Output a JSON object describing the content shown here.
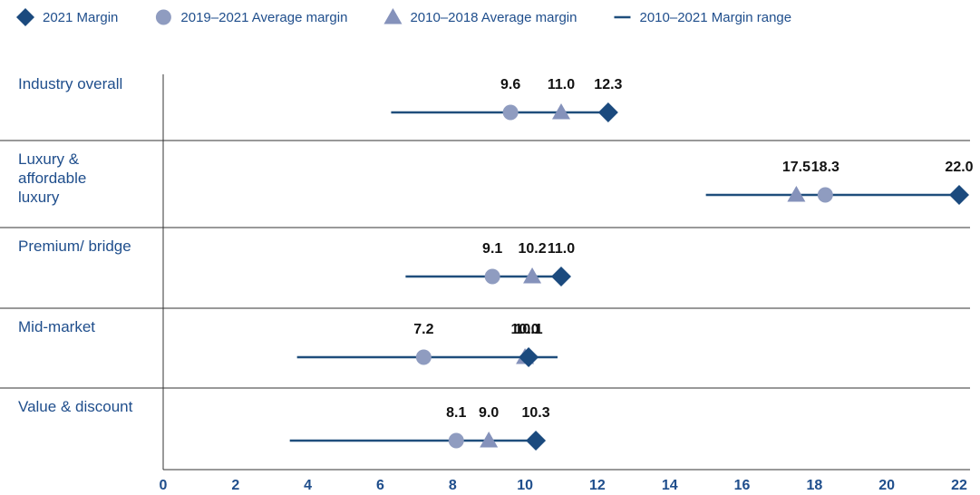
{
  "chart_data": {
    "type": "dot_range",
    "categories": [
      "Industry overall",
      "Luxury & affordable luxury",
      "Premium/ bridge",
      "Mid-market",
      "Value & discount"
    ],
    "series": [
      {
        "name": "2021 Margin",
        "marker": "diamond",
        "color": "#1b4a7e",
        "values": [
          12.3,
          22.0,
          11.0,
          10.1,
          10.3
        ],
        "value_labels": [
          "12.3",
          "22.0",
          "11.0",
          "10.1",
          "10.3"
        ]
      },
      {
        "name": "2019–2021 Average margin",
        "marker": "circle",
        "color": "#8f9cc0",
        "values": [
          9.6,
          18.3,
          9.1,
          7.2,
          8.1
        ],
        "value_labels": [
          "9.6",
          "18.3",
          "9.1",
          "7.2",
          "8.1"
        ]
      },
      {
        "name": "2010–2018 Average margin",
        "marker": "triangle",
        "color": "#8592bb",
        "values": [
          11.0,
          17.5,
          10.2,
          10.0,
          9.0
        ],
        "value_labels": [
          "11.0",
          "17.5",
          "10.2",
          "10.0",
          "9.0"
        ]
      }
    ],
    "range": {
      "name": "2010–2021 Margin range",
      "color": "#1f4e7c",
      "low": [
        6.3,
        15.0,
        6.7,
        3.7,
        3.5
      ],
      "high": [
        12.3,
        22.0,
        11.0,
        10.9,
        10.3
      ]
    },
    "xlim": [
      0,
      22
    ],
    "xticks": [
      0,
      2,
      4,
      6,
      8,
      10,
      12,
      14,
      16,
      18,
      20,
      22
    ]
  }
}
